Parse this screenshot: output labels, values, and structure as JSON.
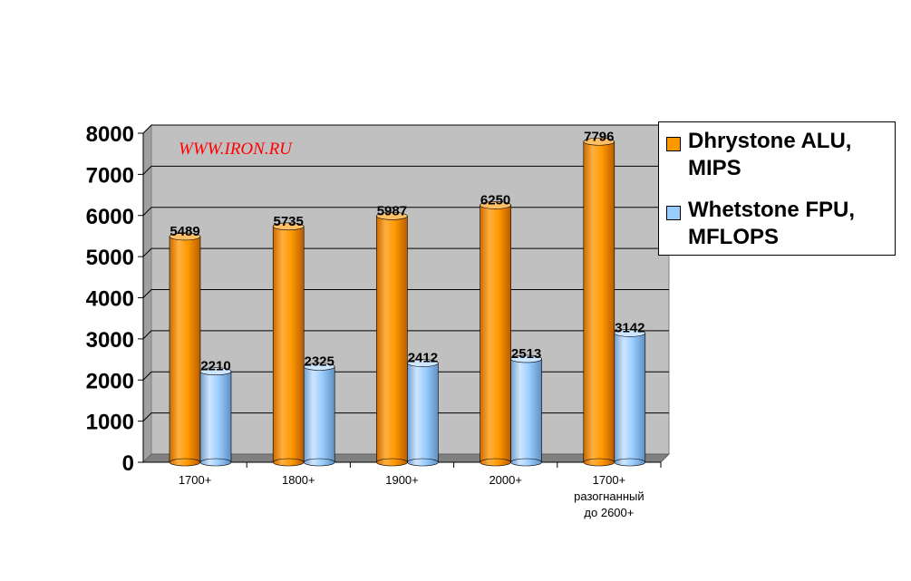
{
  "watermark": "WWW.IRON.RU",
  "colors": {
    "dhrystone": "#ff9900",
    "whetstone": "#99ccff",
    "plot_bg": "#c0c0c0",
    "floor": "#808080"
  },
  "legend": [
    {
      "label": "Dhrystone ALU, MIPS",
      "color": "#ff9900"
    },
    {
      "label": "Whetstone FPU, MFLOPS",
      "color": "#99ccff"
    }
  ],
  "chart_data": {
    "type": "bar",
    "categories": [
      [
        "1700+"
      ],
      [
        "1800+"
      ],
      [
        "1900+"
      ],
      [
        "2000+"
      ],
      [
        "1700+",
        "разогнанный",
        "до 2600+"
      ]
    ],
    "series": [
      {
        "name": "Dhrystone ALU, MIPS",
        "values": [
          5489,
          5735,
          5987,
          6250,
          7796
        ],
        "color": "#ff9900"
      },
      {
        "name": "Whetstone FPU, MFLOPS",
        "values": [
          2210,
          2325,
          2412,
          2513,
          3142
        ],
        "color": "#99ccff"
      }
    ],
    "yticks": [
      0,
      1000,
      2000,
      3000,
      4000,
      5000,
      6000,
      7000,
      8000
    ],
    "ylim": [
      0,
      8000
    ],
    "grid": true,
    "legend_position": "right",
    "title": "",
    "xlabel": "",
    "ylabel": ""
  }
}
